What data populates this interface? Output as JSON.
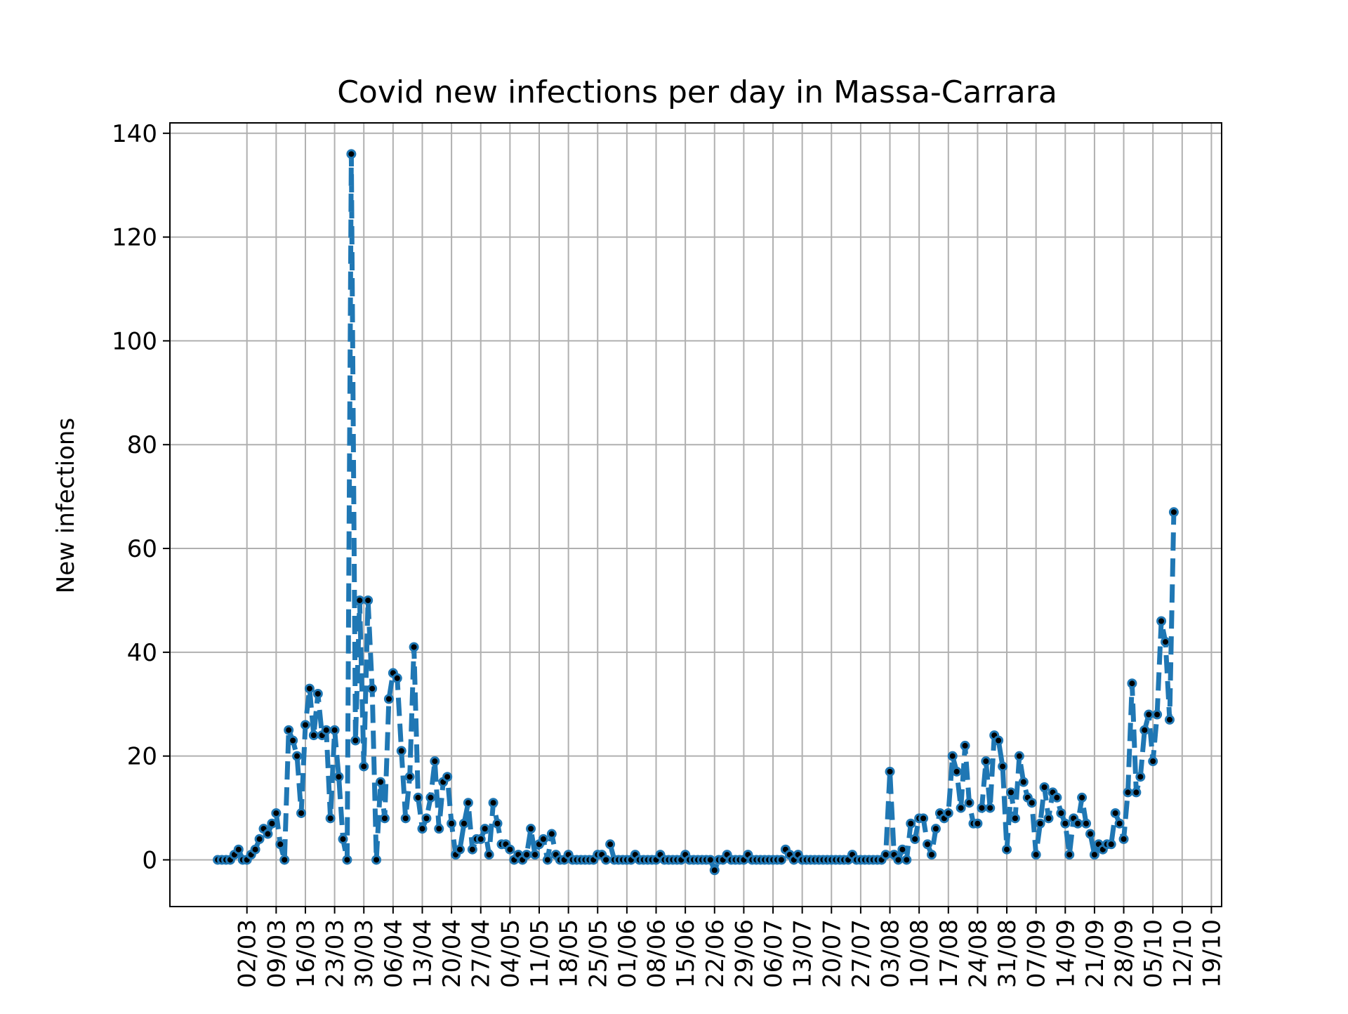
{
  "chart_data": {
    "type": "line",
    "title": "Covid new infections per day in Massa-Carrara",
    "xlabel": "",
    "ylabel": "New infections",
    "ylim": [
      -9,
      142
    ],
    "yticks": [
      0,
      20,
      40,
      60,
      80,
      100,
      120,
      140
    ],
    "xticks": [
      "02/03",
      "09/03",
      "16/03",
      "23/03",
      "30/03",
      "06/04",
      "13/04",
      "20/04",
      "27/04",
      "04/05",
      "11/05",
      "18/05",
      "25/05",
      "01/06",
      "08/06",
      "15/06",
      "22/06",
      "29/06",
      "06/07",
      "13/07",
      "20/07",
      "27/07",
      "03/08",
      "10/08",
      "17/08",
      "24/08",
      "31/08",
      "07/09",
      "14/09",
      "21/09",
      "28/09",
      "05/10",
      "12/10",
      "19/10"
    ],
    "grid": true,
    "line_color": "#1f77b4",
    "marker_color": "#000000",
    "line_style": "dashed",
    "start_date": "2020-02-24",
    "series": [
      {
        "name": "",
        "values": [
          0,
          0,
          0,
          0,
          1,
          2,
          0,
          0,
          1,
          2,
          4,
          6,
          5,
          7,
          9,
          3,
          0,
          25,
          23,
          20,
          9,
          26,
          33,
          24,
          32,
          24,
          25,
          8,
          25,
          16,
          4,
          0,
          136,
          23,
          50,
          18,
          50,
          33,
          0,
          15,
          8,
          31,
          36,
          35,
          21,
          8,
          16,
          41,
          12,
          6,
          8,
          12,
          19,
          6,
          15,
          16,
          7,
          1,
          2,
          7,
          11,
          2,
          4,
          4,
          6,
          1,
          11,
          7,
          3,
          3,
          2,
          0,
          1,
          0,
          1,
          6,
          1,
          3,
          4,
          0,
          5,
          1,
          0,
          0,
          1,
          0,
          0,
          0,
          0,
          0,
          0,
          1,
          1,
          0,
          3,
          0,
          0,
          0,
          0,
          0,
          1,
          0,
          0,
          0,
          0,
          0,
          1,
          0,
          0,
          0,
          0,
          0,
          1,
          0,
          0,
          0,
          0,
          0,
          0,
          -2,
          0,
          0,
          1,
          0,
          0,
          0,
          0,
          1,
          0,
          0,
          0,
          0,
          0,
          0,
          0,
          0,
          2,
          1,
          0,
          1,
          0,
          0,
          0,
          0,
          0,
          0,
          0,
          0,
          0,
          0,
          0,
          0,
          1,
          0,
          0,
          0,
          0,
          0,
          0,
          0,
          1,
          17,
          1,
          0,
          2,
          0,
          7,
          4,
          8,
          8,
          3,
          1,
          6,
          9,
          8,
          9,
          20,
          17,
          10,
          22,
          11,
          7,
          7,
          10,
          19,
          10,
          24,
          23,
          18,
          2,
          13,
          8,
          20,
          15,
          12,
          11,
          1,
          7,
          14,
          8,
          13,
          12,
          9,
          7,
          1,
          8,
          7,
          12,
          7,
          5,
          1,
          3,
          2,
          3,
          3,
          9,
          7,
          4,
          13,
          34,
          13,
          16,
          25,
          28,
          19,
          28,
          46,
          42,
          27,
          67
        ]
      }
    ]
  }
}
